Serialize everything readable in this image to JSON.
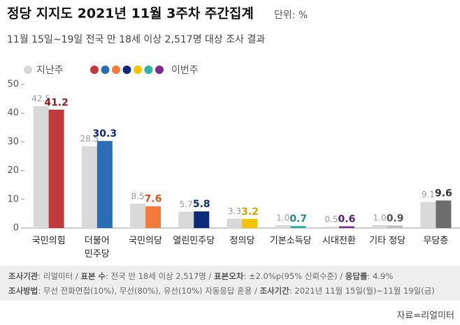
{
  "chart_data": {
    "type": "bar",
    "title": "정당 지지도 2021년 11월 3주차 주간집계",
    "unit": "단위: %",
    "subtitle": "11월 15일~19일 전국 만 18세 이상 2,517명 대상 조사 결과",
    "categories": [
      "국민의힘",
      "더불어\n민주당",
      "국민의당",
      "열린민주당",
      "정의당",
      "기본소득당",
      "시대전환",
      "기타 정당",
      "무당층"
    ],
    "series": [
      {
        "name": "지난주",
        "color": "#d9d9d9",
        "label_color": "#9a9a9a",
        "values": [
          42.5,
          28.5,
          8.5,
          5.7,
          3.3,
          1.0,
          0.5,
          1.0,
          9.1
        ]
      },
      {
        "name": "이번주",
        "colors": [
          "#c0393b",
          "#2a6db5",
          "#f47b3c",
          "#0d2a7a",
          "#f5c400",
          "#2bb5a8",
          "#7a2a90",
          "#bfbfbf",
          "#6d6d6d"
        ],
        "label_colors": [
          "#8b1c1c",
          "#0d2a7a",
          "#d9531e",
          "#0d2a7a",
          "#d9a400",
          "#1f8f84",
          "#5a1a70",
          "#555555",
          "#333333"
        ],
        "values": [
          41.2,
          30.3,
          7.6,
          5.8,
          3.2,
          0.7,
          0.6,
          0.9,
          9.6
        ]
      }
    ],
    "legend_dots": [
      "#c0393b",
      "#2a6db5",
      "#f47b3c",
      "#0d2a7a",
      "#f5c400",
      "#2bb5a8",
      "#7a2a90"
    ],
    "ylim": [
      0,
      50
    ],
    "yticks": [
      0,
      10,
      20,
      30,
      40,
      50
    ],
    "notes": [
      [
        [
          "조사기관",
          ": 리얼미터 / "
        ],
        [
          "표본 수",
          ": 전국 만 18세 이상 2,517명 / "
        ],
        [
          "표본오차",
          ": ±2.0%p(95% 신뢰수준) / "
        ],
        [
          "응답률",
          ": 4.9%"
        ]
      ],
      [
        [
          "조사방법",
          ": 무선 전화면접(10%), 무선(80%), 유선(10%) 자동응답 혼용 / "
        ],
        [
          "조사기간",
          ": 2021년 11월 15일(월)~11월 19일(금)"
        ]
      ]
    ],
    "source": "자료=리얼미터"
  }
}
